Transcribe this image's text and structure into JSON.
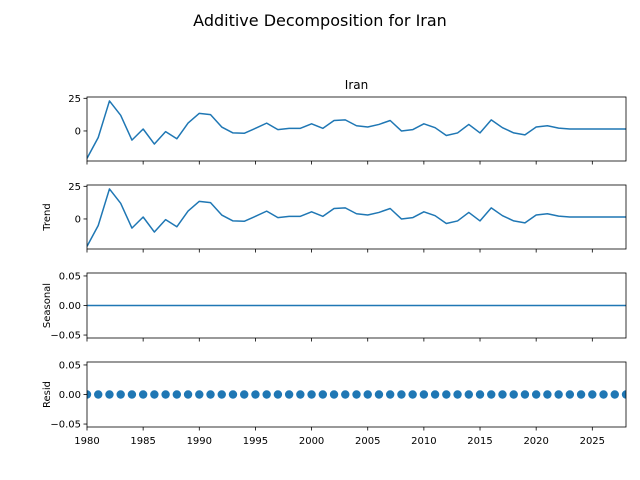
{
  "chart_data": {
    "type": "line",
    "title": "Additive Decomposition for Iran",
    "xlim": [
      1980,
      2028
    ],
    "xticks": [
      1980,
      1985,
      1990,
      1995,
      2000,
      2005,
      2010,
      2015,
      2020,
      2025
    ],
    "x": [
      1980,
      1981,
      1982,
      1983,
      1984,
      1985,
      1986,
      1987,
      1988,
      1989,
      1990,
      1991,
      1992,
      1993,
      1994,
      1995,
      1996,
      1997,
      1998,
      1999,
      2000,
      2001,
      2002,
      2003,
      2004,
      2005,
      2006,
      2007,
      2008,
      2009,
      2010,
      2011,
      2012,
      2013,
      2014,
      2015,
      2016,
      2017,
      2018,
      2019,
      2020,
      2021,
      2022,
      2023,
      2024,
      2025,
      2026,
      2027,
      2028
    ],
    "panels": [
      {
        "key": "observed",
        "title": "Iran",
        "ylabel": "",
        "ylim": [
          -23,
          26
        ],
        "yticks": [
          0,
          25
        ],
        "style": "line",
        "values": [
          -21,
          -5,
          23,
          12,
          -7,
          1.5,
          -10,
          -0.5,
          -6,
          6,
          13.5,
          12.5,
          3,
          -1.5,
          -1.8,
          2,
          6,
          1,
          2,
          2,
          5.5,
          2,
          8,
          8.5,
          4,
          3,
          5,
          8,
          0,
          1,
          5.5,
          2.5,
          -3.5,
          -1.5,
          5,
          -1.5,
          8.5,
          2.5,
          -1.5,
          -3,
          3,
          4,
          2.2,
          1.5,
          1.5,
          1.5,
          1.5,
          1.5,
          1.5
        ]
      },
      {
        "key": "trend",
        "title": "",
        "ylabel": "Trend",
        "ylim": [
          -23,
          26
        ],
        "yticks": [
          0,
          25
        ],
        "style": "line",
        "values": [
          -21,
          -5,
          23,
          12,
          -7,
          1.5,
          -10,
          -0.5,
          -6,
          6,
          13.5,
          12.5,
          3,
          -1.5,
          -1.8,
          2,
          6,
          1,
          2,
          2,
          5.5,
          2,
          8,
          8.5,
          4,
          3,
          5,
          8,
          0,
          1,
          5.5,
          2.5,
          -3.5,
          -1.5,
          5,
          -1.5,
          8.5,
          2.5,
          -1.5,
          -3,
          3,
          4,
          2.2,
          1.5,
          1.5,
          1.5,
          1.5,
          1.5,
          1.5
        ]
      },
      {
        "key": "seasonal",
        "title": "",
        "ylabel": "Seasonal",
        "ylim": [
          -0.055,
          0.055
        ],
        "yticks": [
          -0.05,
          0.0,
          0.05
        ],
        "yticklabels": [
          "−0.05",
          "0.00",
          "0.05"
        ],
        "style": "line",
        "values": [
          0,
          0,
          0,
          0,
          0,
          0,
          0,
          0,
          0,
          0,
          0,
          0,
          0,
          0,
          0,
          0,
          0,
          0,
          0,
          0,
          0,
          0,
          0,
          0,
          0,
          0,
          0,
          0,
          0,
          0,
          0,
          0,
          0,
          0,
          0,
          0,
          0,
          0,
          0,
          0,
          0,
          0,
          0,
          0,
          0,
          0,
          0,
          0,
          0
        ]
      },
      {
        "key": "resid",
        "title": "",
        "ylabel": "Resid",
        "ylim": [
          -0.055,
          0.055
        ],
        "yticks": [
          -0.05,
          0.0,
          0.05
        ],
        "yticklabels": [
          "−0.05",
          "0.00",
          "0.05"
        ],
        "style": "dots",
        "values": [
          0,
          0,
          0,
          0,
          0,
          0,
          0,
          0,
          0,
          0,
          0,
          0,
          0,
          0,
          0,
          0,
          0,
          0,
          0,
          0,
          0,
          0,
          0,
          0,
          0,
          0,
          0,
          0,
          0,
          0,
          0,
          0,
          0,
          0,
          0,
          0,
          0,
          0,
          0,
          0,
          0,
          0,
          0,
          0,
          0,
          0,
          0,
          0,
          0
        ]
      }
    ],
    "colors": {
      "series": "#1f77b4"
    }
  }
}
